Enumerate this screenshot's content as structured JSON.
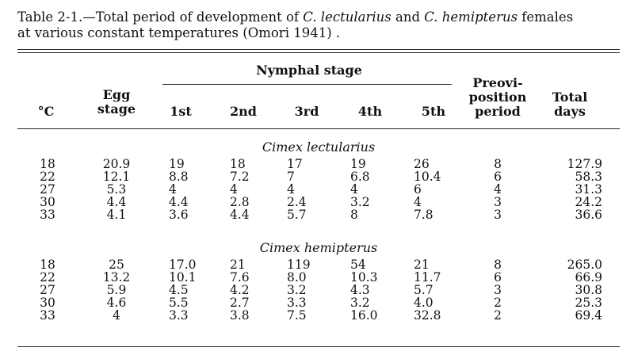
{
  "caption": {
    "prefix": "Table 2-1.—Total period of development of ",
    "species1": "C. lectularius",
    "mid": " and ",
    "species2": "C. hemipterus",
    "suffix1": " females",
    "line2": "at various constant temperatures (Omori 1941) ."
  },
  "headers": {
    "nymphal": "Nymphal stage",
    "temp": "°C",
    "egg1": "Egg",
    "egg2": "stage",
    "n1": "1st",
    "n2": "2nd",
    "n3": "3rd",
    "n4": "4th",
    "n5": "5th",
    "pre1": "Preovi-",
    "pre2": "position",
    "pre3": "period",
    "tot1": "Total",
    "tot2": "days"
  },
  "sections": [
    {
      "name": "Cimex lectularius",
      "rows": [
        [
          "18",
          "20.9",
          "19",
          "18",
          "17",
          "19",
          "26",
          "8",
          "127.9"
        ],
        [
          "22",
          "12.1",
          "8.8",
          "7.2",
          "7",
          "6.8",
          "10.4",
          "6",
          "58.3"
        ],
        [
          "27",
          "5.3",
          "4",
          "4",
          "4",
          "4",
          "6",
          "4",
          "31.3"
        ],
        [
          "30",
          "4.4",
          "4.4",
          "2.8",
          "2.4",
          "3.2",
          "4",
          "3",
          "24.2"
        ],
        [
          "33",
          "4.1",
          "3.6",
          "4.4",
          "5.7",
          "8",
          "7.8",
          "3",
          "36.6"
        ]
      ]
    },
    {
      "name": "Cimex hemipterus",
      "rows": [
        [
          "18",
          "25",
          "17.0",
          "21",
          "119",
          "54",
          "21",
          "8",
          "265.0"
        ],
        [
          "22",
          "13.2",
          "10.1",
          "7.6",
          "8.0",
          "10.3",
          "11.7",
          "6",
          "66.9"
        ],
        [
          "27",
          "5.9",
          "4.5",
          "4.2",
          "3.2",
          "4.3",
          "5.7",
          "3",
          "30.8"
        ],
        [
          "30",
          "4.6",
          "5.5",
          "2.7",
          "3.3",
          "3.2",
          "4.0",
          "2",
          "25.3"
        ],
        [
          "33",
          "4",
          "3.3",
          "3.8",
          "7.5",
          "16.0",
          "32.8",
          "2",
          "69.4"
        ]
      ]
    }
  ]
}
